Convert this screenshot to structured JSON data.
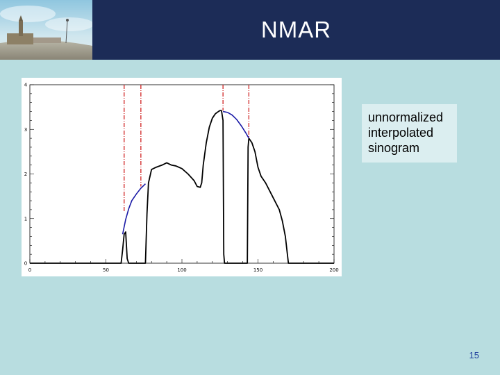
{
  "slide": {
    "title": "NMAR",
    "page_number": "15",
    "callout_lines": [
      "unnormalized",
      "interpolated",
      "sinogram"
    ]
  },
  "colors": {
    "header": "#1c2c57",
    "background": "#b8dde0",
    "callout_bg": "#dbeef0",
    "profile": "#000000",
    "interpolated": "#1a1aa6",
    "marker": "#cc1111"
  },
  "chart_data": {
    "type": "line",
    "xlim": [
      0,
      200
    ],
    "ylim": [
      0,
      4
    ],
    "x_ticks": [
      "0",
      "50",
      "100",
      "150",
      "200"
    ],
    "y_ticks": [
      "0",
      "1",
      "2",
      "3",
      "4"
    ],
    "grid": false,
    "series": [
      {
        "role": "profile",
        "color": "#000000",
        "points": [
          [
            0,
            0
          ],
          [
            60,
            0
          ],
          [
            61,
            0.3
          ],
          [
            62,
            0.65
          ],
          [
            63,
            0.7
          ],
          [
            64,
            0.1
          ],
          [
            65,
            0
          ],
          [
            76,
            0
          ],
          [
            77,
            1.1
          ],
          [
            78,
            1.8
          ],
          [
            80,
            2.1
          ],
          [
            83,
            2.15
          ],
          [
            87,
            2.2
          ],
          [
            90,
            2.25
          ],
          [
            93,
            2.2
          ],
          [
            96,
            2.18
          ],
          [
            100,
            2.12
          ],
          [
            104,
            2.0
          ],
          [
            108,
            1.85
          ],
          [
            110,
            1.72
          ],
          [
            112,
            1.7
          ],
          [
            113,
            1.8
          ],
          [
            114,
            2.2
          ],
          [
            116,
            2.7
          ],
          [
            118,
            3.05
          ],
          [
            120,
            3.25
          ],
          [
            122,
            3.35
          ],
          [
            124,
            3.4
          ],
          [
            125,
            3.42
          ],
          [
            126,
            3.42
          ],
          [
            127,
            3.2
          ],
          [
            127.5,
            0.2
          ],
          [
            128,
            0
          ],
          [
            143,
            0
          ],
          [
            143.5,
            2.6
          ],
          [
            144,
            2.8
          ],
          [
            146,
            2.7
          ],
          [
            148,
            2.5
          ],
          [
            150,
            2.15
          ],
          [
            152,
            1.95
          ],
          [
            155,
            1.8
          ],
          [
            158,
            1.6
          ],
          [
            161,
            1.4
          ],
          [
            164,
            1.2
          ],
          [
            166,
            0.95
          ],
          [
            168,
            0.6
          ],
          [
            169,
            0.3
          ],
          [
            170,
            0
          ],
          [
            200,
            0
          ]
        ]
      },
      {
        "role": "interpolated",
        "color": "#1a1aa6",
        "points": [
          [
            61,
            0.65
          ],
          [
            63,
            0.98
          ],
          [
            65,
            1.22
          ],
          [
            67,
            1.4
          ],
          [
            70,
            1.55
          ],
          [
            73,
            1.68
          ],
          [
            76,
            1.78
          ],
          [
            127,
            3.4
          ],
          [
            130,
            3.38
          ],
          [
            133,
            3.32
          ],
          [
            136,
            3.22
          ],
          [
            139,
            3.08
          ],
          [
            142,
            2.92
          ],
          [
            144,
            2.8
          ]
        ]
      }
    ],
    "markers": [
      {
        "x": 62,
        "y_top": 4.0,
        "y_bottom": 1.15
      },
      {
        "x": 73,
        "y_top": 4.0,
        "y_bottom": 1.72
      },
      {
        "x": 127,
        "y_top": 4.0,
        "y_bottom": 3.42
      },
      {
        "x": 144,
        "y_top": 4.0,
        "y_bottom": 2.8
      }
    ]
  }
}
